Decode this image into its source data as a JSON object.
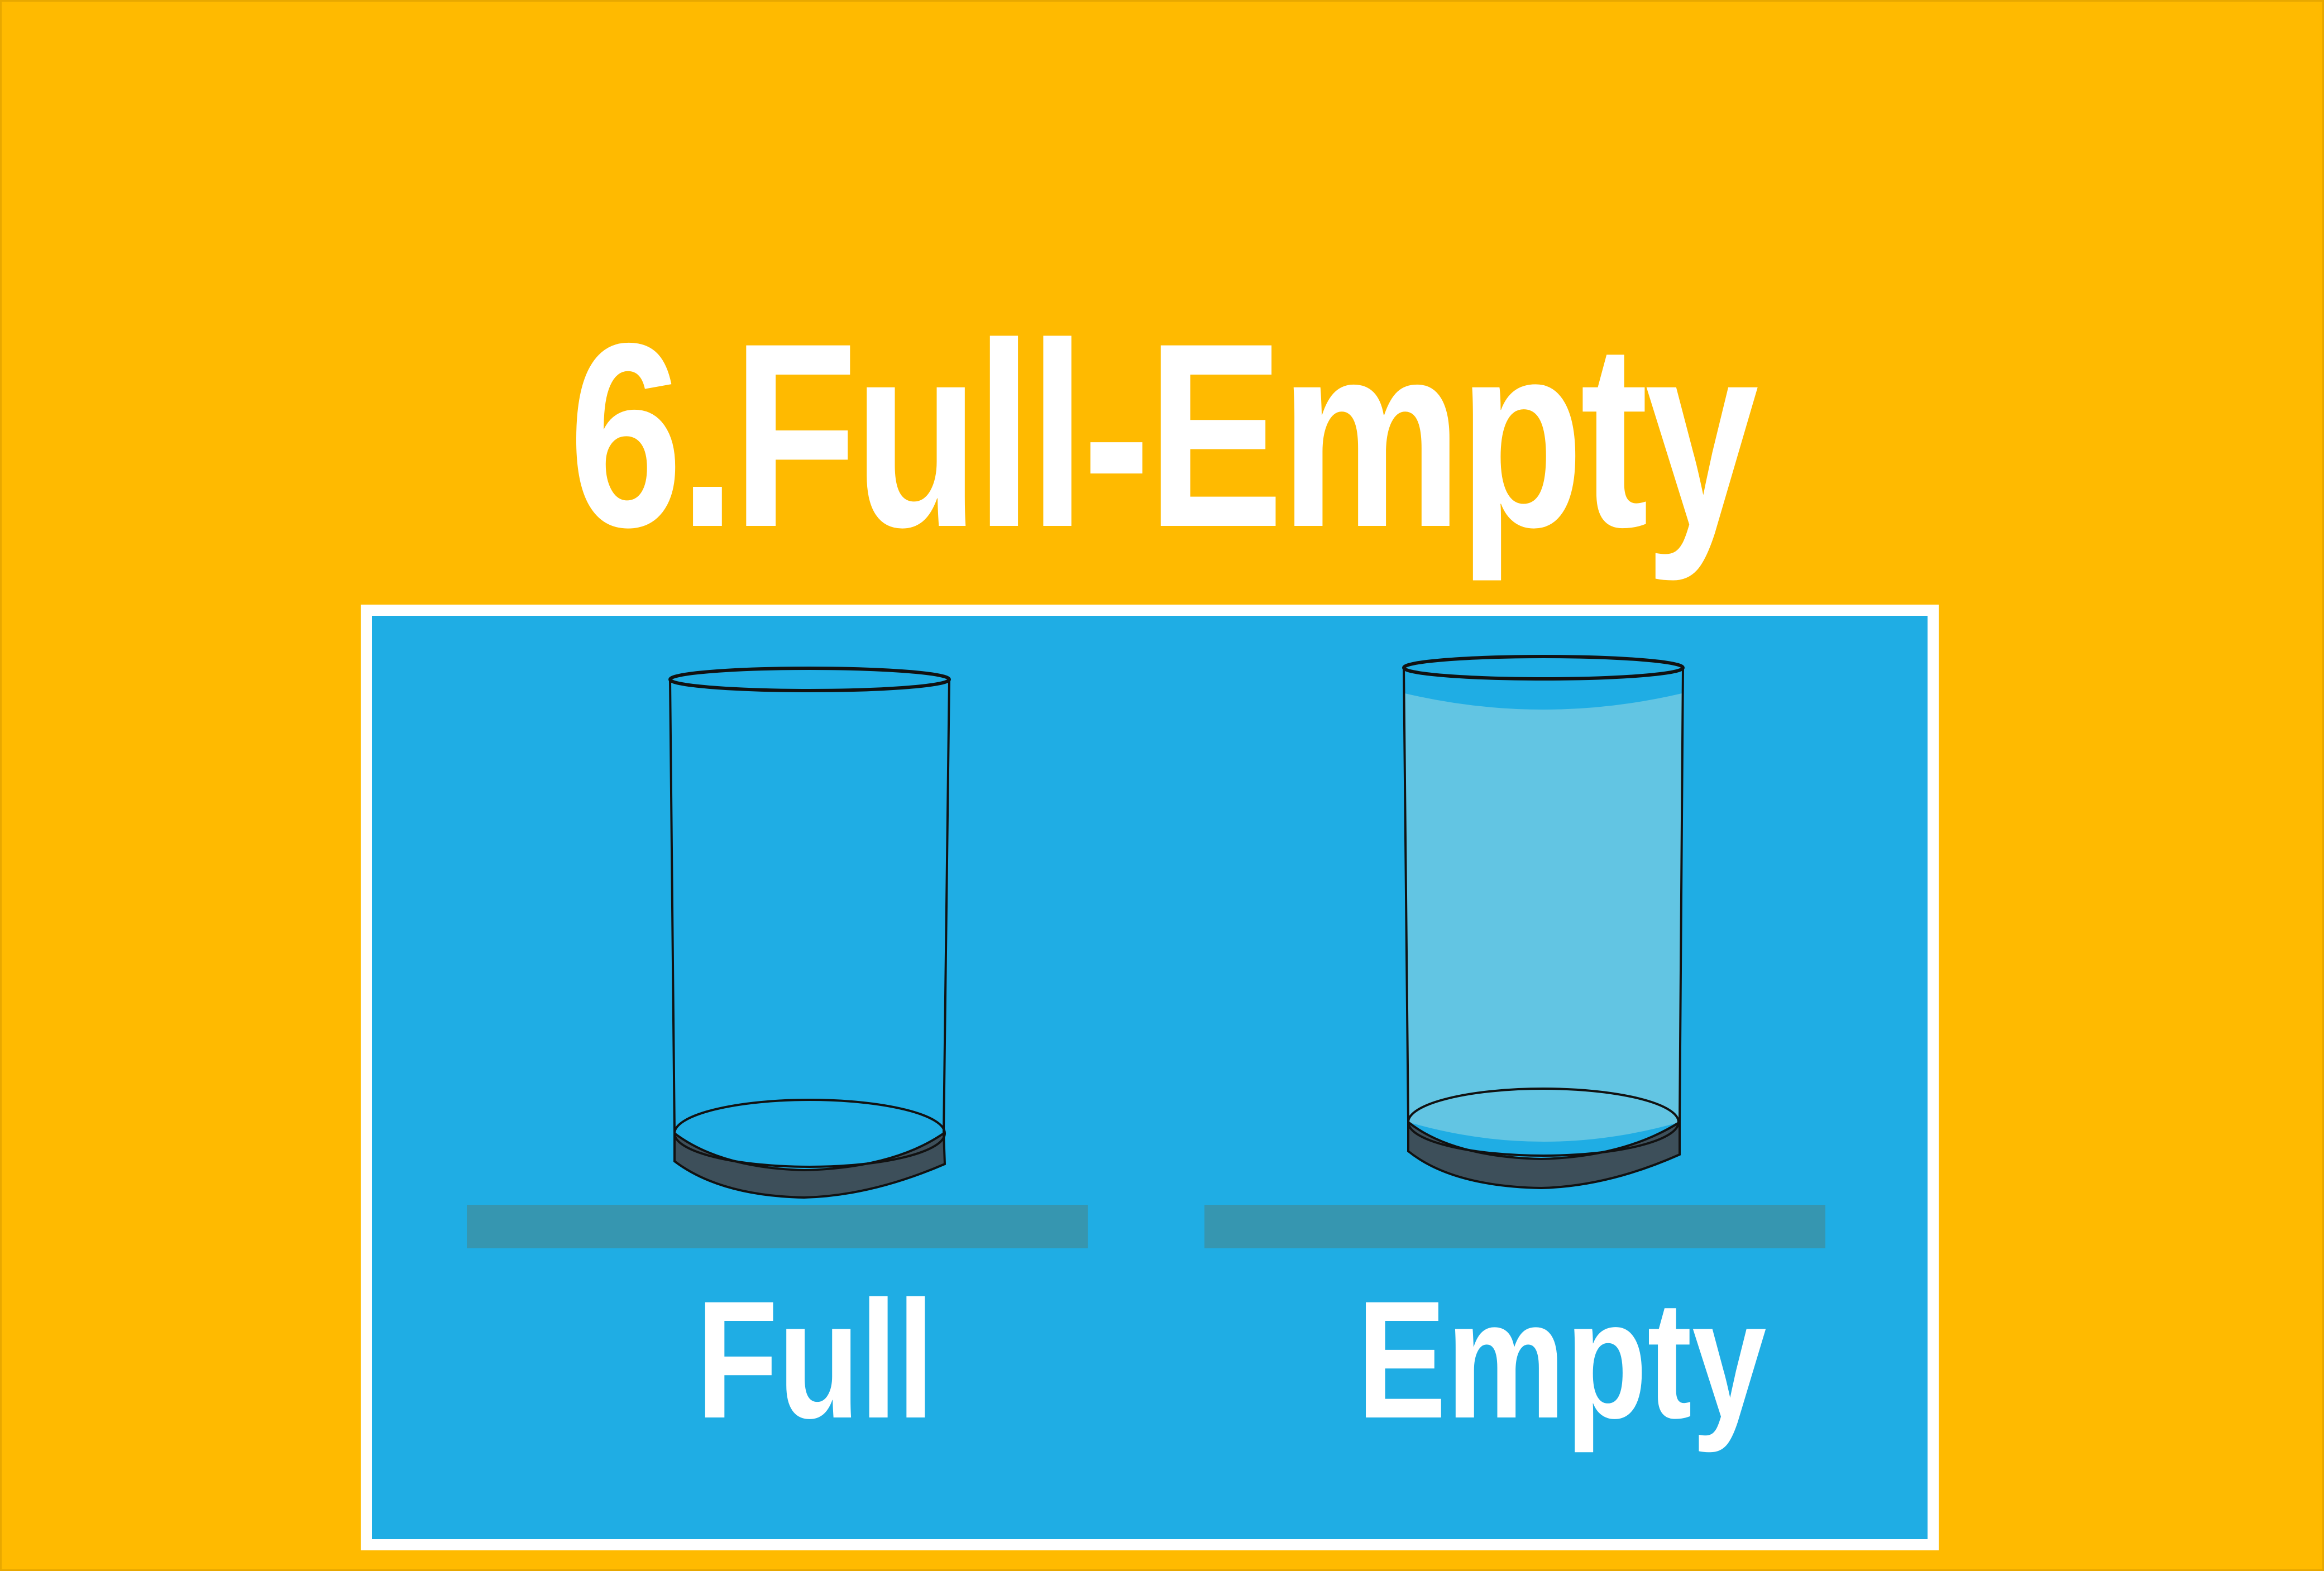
{
  "title": "6.Full-Empty",
  "labels": {
    "left": "Full",
    "right": "Empty"
  },
  "colors": {
    "background": "#FFBA00",
    "panel": "#1FADE4",
    "panel_border": "#FFFFFF",
    "water": "#62C5E3",
    "glass_base": "#3D4F5A",
    "shelf": "#3696B0",
    "text": "#FFFFFF"
  }
}
